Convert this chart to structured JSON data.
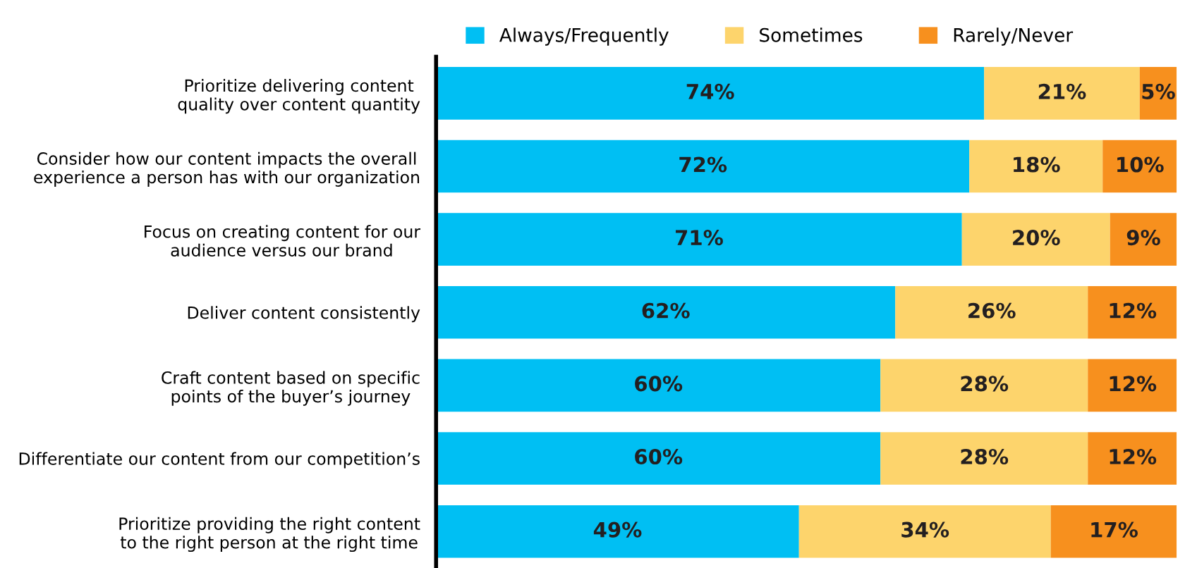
{
  "chart_data": {
    "type": "bar",
    "orientation": "horizontal",
    "stacked": true,
    "legend": "top",
    "grid": false,
    "tick_labels": "y",
    "categories": [
      "Prioritize delivering content\nquality over content quantity",
      "Consider how our content impacts the overall\nexperience a person has with our organization",
      "Focus on creating content for our\naudience versus our brand",
      "Deliver content consistently",
      "Craft content based on specific\npoints of the buyer’s journey",
      "Differentiate our content from our competition’s",
      "Prioritize providing the right content\nto the right person at the right time"
    ],
    "series": [
      {
        "name": "Always/Frequently",
        "color": "#00bff3",
        "values": [
          74,
          72,
          71,
          62,
          60,
          60,
          49
        ],
        "value_labels": [
          "74%",
          "72%",
          "71%",
          "62%",
          "60%",
          "60%",
          "49%"
        ]
      },
      {
        "name": "Sometimes",
        "color": "#fdd46c",
        "values": [
          21,
          18,
          20,
          26,
          28,
          28,
          34
        ],
        "value_labels": [
          "21%",
          "18%",
          "20%",
          "26%",
          "28%",
          "28%",
          "34%"
        ]
      },
      {
        "name": "Rarely/Never",
        "color": "#f7901e",
        "values": [
          5,
          10,
          9,
          12,
          12,
          12,
          17
        ],
        "value_labels": [
          "5%",
          "10%",
          "9%",
          "12%",
          "12%",
          "12%",
          "17%"
        ]
      }
    ]
  }
}
